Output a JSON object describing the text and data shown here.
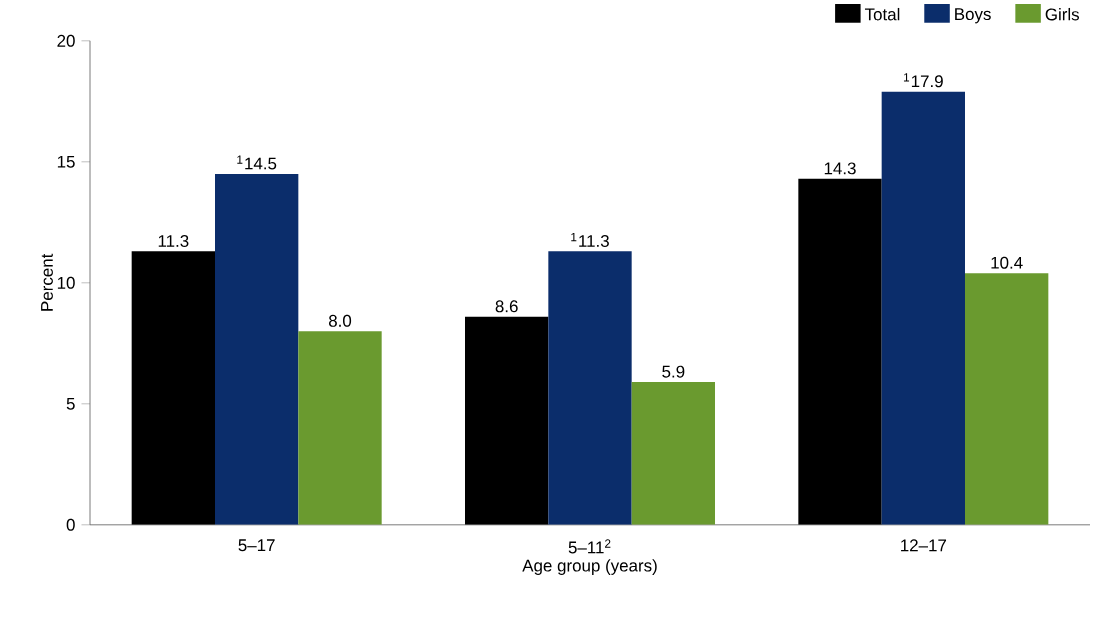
{
  "chart_data": {
    "type": "bar",
    "xlabel": "Age group (years)",
    "ylabel": "Percent",
    "categories": [
      "5–17",
      "5–11$^{2}$",
      "12–17"
    ],
    "series": [
      {
        "name": "Total",
        "color": "#000000",
        "values": [
          11.3,
          8.6,
          14.3
        ],
        "value_labels": [
          "11.3",
          "8.6",
          "14.3"
        ]
      },
      {
        "name": "Boys",
        "color": "#0b2d6b",
        "values": [
          14.5,
          11.3,
          17.9
        ],
        "value_labels": [
          "$^{1}$14.5",
          "$^{1}$11.3",
          "$^{1}$17.9"
        ]
      },
      {
        "name": "Girls",
        "color": "#6a9a2f",
        "values": [
          8.0,
          5.9,
          10.4
        ],
        "value_labels": [
          "8.0",
          "5.9",
          "10.4"
        ]
      }
    ],
    "ylim": [
      0,
      20
    ],
    "yticks": [
      0,
      5,
      10,
      15,
      20
    ],
    "grid": false,
    "legend": "top right"
  }
}
